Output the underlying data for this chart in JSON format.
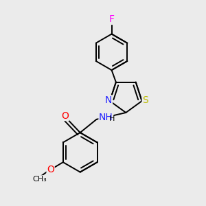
{
  "background_color": "#ebebeb",
  "bond_color": "#000000",
  "atom_colors": {
    "F": "#ff00ff",
    "N": "#2222ff",
    "O": "#ff0000",
    "S": "#bbbb00",
    "H": "#000000",
    "C": "#000000"
  },
  "font_size": 9,
  "line_width": 1.4
}
